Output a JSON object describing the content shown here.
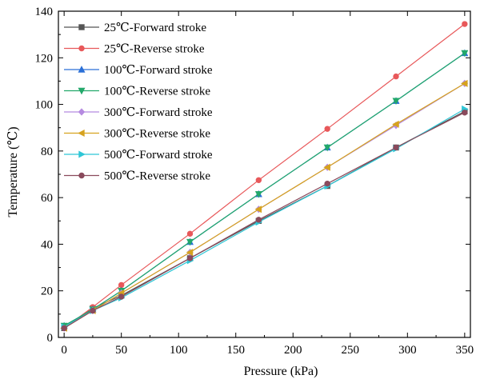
{
  "chart_data": {
    "type": "line",
    "xlabel": "Pressure (kPa)",
    "ylabel": "Temperature (℃)",
    "xlim": [
      -5,
      355
    ],
    "ylim": [
      0,
      140
    ],
    "xticks": [
      0,
      50,
      100,
      150,
      200,
      250,
      300,
      350
    ],
    "yticks": [
      0,
      20,
      40,
      60,
      80,
      100,
      120,
      140
    ],
    "grid": false,
    "legend_position": "top-left",
    "x": [
      0,
      25,
      50,
      110,
      170,
      230,
      290,
      350
    ],
    "series": [
      {
        "name": "25℃-Forward stroke",
        "color": "#555555",
        "marker": "square",
        "values": [
          4,
          12.5,
          18,
          34,
          50,
          65,
          81.5,
          97
        ]
      },
      {
        "name": "25℃-Reverse stroke",
        "color": "#e8585a",
        "marker": "circle",
        "values": [
          4,
          13,
          22.5,
          44.5,
          67.5,
          89.5,
          112,
          134.5
        ]
      },
      {
        "name": "100℃-Forward stroke",
        "color": "#2a6fd6",
        "marker": "triangle-up",
        "values": [
          5,
          12,
          20,
          41,
          61.5,
          81.5,
          101.5,
          122
        ]
      },
      {
        "name": "100℃-Reverse stroke",
        "color": "#22a86a",
        "marker": "triangle-down",
        "values": [
          5,
          12,
          20,
          41,
          61.5,
          81.5,
          101.5,
          122
        ]
      },
      {
        "name": "300℃-Forward stroke",
        "color": "#b58ae0",
        "marker": "diamond",
        "values": [
          4,
          11.5,
          19,
          36.5,
          55,
          73,
          91,
          109
        ]
      },
      {
        "name": "300℃-Reverse stroke",
        "color": "#d6a21e",
        "marker": "triangle-left",
        "values": [
          4,
          11.5,
          19,
          36.5,
          55,
          73,
          91.5,
          109
        ]
      },
      {
        "name": "500℃-Forward stroke",
        "color": "#2ec6d6",
        "marker": "triangle-right",
        "values": [
          4.5,
          11.5,
          17,
          33,
          49.5,
          65,
          81,
          98
        ]
      },
      {
        "name": "500℃-Reverse stroke",
        "color": "#8a4a5c",
        "marker": "circle",
        "values": [
          4,
          11.5,
          17.5,
          34,
          50.5,
          66,
          81.5,
          96.5
        ]
      }
    ]
  }
}
